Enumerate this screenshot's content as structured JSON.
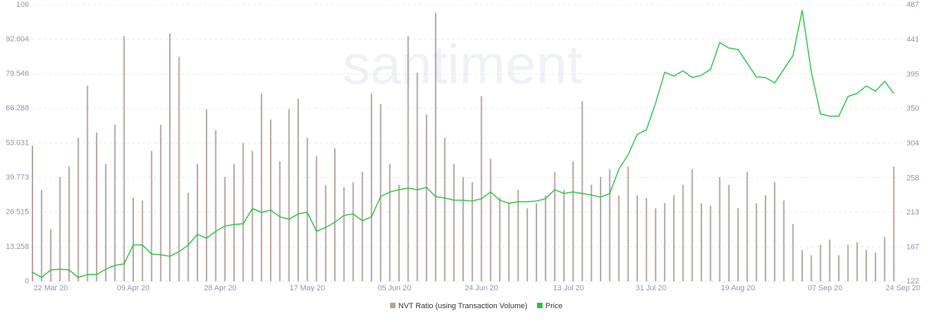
{
  "chart_data": {
    "type": "bar",
    "watermark": "santiment",
    "x": [
      "2020-03-18",
      "2020-03-20",
      "2020-03-22",
      "2020-03-24",
      "2020-03-26",
      "2020-03-28",
      "2020-03-30",
      "2020-04-01",
      "2020-04-03",
      "2020-04-05",
      "2020-04-07",
      "2020-04-09",
      "2020-04-11",
      "2020-04-13",
      "2020-04-15",
      "2020-04-17",
      "2020-04-19",
      "2020-04-21",
      "2020-04-23",
      "2020-04-25",
      "2020-04-27",
      "2020-04-29",
      "2020-05-01",
      "2020-05-03",
      "2020-05-05",
      "2020-05-07",
      "2020-05-09",
      "2020-05-11",
      "2020-05-13",
      "2020-05-15",
      "2020-05-17",
      "2020-05-19",
      "2020-05-21",
      "2020-05-23",
      "2020-05-25",
      "2020-05-27",
      "2020-05-29",
      "2020-05-31",
      "2020-06-02",
      "2020-06-04",
      "2020-06-06",
      "2020-06-08",
      "2020-06-10",
      "2020-06-12",
      "2020-06-14",
      "2020-06-16",
      "2020-06-18",
      "2020-06-20",
      "2020-06-22",
      "2020-06-24",
      "2020-06-26",
      "2020-06-28",
      "2020-06-30",
      "2020-07-02",
      "2020-07-04",
      "2020-07-06",
      "2020-07-08",
      "2020-07-10",
      "2020-07-12",
      "2020-07-14",
      "2020-07-16",
      "2020-07-18",
      "2020-07-20",
      "2020-07-22",
      "2020-07-24",
      "2020-07-26",
      "2020-07-28",
      "2020-07-30",
      "2020-08-01",
      "2020-08-03",
      "2020-08-05",
      "2020-08-07",
      "2020-08-09",
      "2020-08-11",
      "2020-08-13",
      "2020-08-15",
      "2020-08-17",
      "2020-08-19",
      "2020-08-21",
      "2020-08-23",
      "2020-08-25",
      "2020-08-27",
      "2020-08-29",
      "2020-08-31",
      "2020-09-02",
      "2020-09-04",
      "2020-09-06",
      "2020-09-08",
      "2020-09-10",
      "2020-09-12",
      "2020-09-14",
      "2020-09-16",
      "2020-09-18",
      "2020-09-20",
      "2020-09-22"
    ],
    "xlim": [
      "2020-03-18",
      "2020-09-24"
    ],
    "xticks": [
      {
        "value": "2020-03-22",
        "label": "22 Mar 20"
      },
      {
        "value": "2020-04-09",
        "label": "09 Apr 20"
      },
      {
        "value": "2020-04-28",
        "label": "28 Apr 20"
      },
      {
        "value": "2020-05-17",
        "label": "17 May 20"
      },
      {
        "value": "2020-06-05",
        "label": "05 Jun 20"
      },
      {
        "value": "2020-06-24",
        "label": "24 Jun 20"
      },
      {
        "value": "2020-07-13",
        "label": "13 Jul 20"
      },
      {
        "value": "2020-07-31",
        "label": "31 Jul 20"
      },
      {
        "value": "2020-08-19",
        "label": "19 Aug 20"
      },
      {
        "value": "2020-09-07",
        "label": "07 Sep 20"
      },
      {
        "value": "2020-09-24",
        "label": "24 Sep 20"
      }
    ],
    "ylim": [
      0,
      106
    ],
    "yticks": [
      0,
      13.258,
      26.515,
      39.773,
      53.031,
      66.288,
      79.546,
      92.804,
      106
    ],
    "y2lim": [
      122,
      487
    ],
    "y2ticks": [
      122,
      167,
      213,
      258,
      304,
      350,
      395,
      441,
      487
    ],
    "grid": true,
    "series": [
      {
        "name": "NVT Ratio (using Transaction Volume)",
        "type": "bar",
        "color": "#b3a39c",
        "values": [
          52,
          35,
          20,
          40,
          44,
          55,
          75,
          57,
          45,
          60,
          94,
          32,
          31,
          50,
          60,
          95,
          86,
          34,
          45,
          66,
          58,
          40,
          45,
          53,
          50,
          72,
          62,
          46,
          66,
          70,
          55,
          48,
          37,
          51,
          36,
          38,
          42,
          72,
          68,
          45,
          37,
          94,
          80,
          64,
          103,
          55,
          45,
          40,
          38,
          71,
          47,
          32,
          30,
          35,
          28,
          30,
          33,
          42,
          35,
          46,
          69,
          37,
          40,
          43,
          33,
          44,
          33,
          32,
          28,
          30,
          33,
          37,
          43,
          30,
          29,
          40,
          37,
          28,
          42,
          30,
          33,
          38,
          31,
          22,
          12,
          10,
          14,
          16,
          10,
          14,
          15,
          12,
          11,
          17,
          44
        ]
      },
      {
        "name": "Price",
        "type": "line",
        "axis": "y2",
        "color": "#26c241",
        "values": [
          134,
          127,
          137,
          138,
          137,
          127,
          131,
          131,
          138,
          143,
          145,
          170,
          170,
          158,
          157,
          155,
          161,
          170,
          184,
          179,
          188,
          195,
          197,
          198,
          218,
          213,
          216,
          207,
          204,
          211,
          213,
          188,
          193,
          200,
          209,
          211,
          202,
          207,
          234,
          240,
          243,
          245,
          243,
          246,
          234,
          232,
          229,
          229,
          228,
          231,
          240,
          229,
          225,
          227,
          227,
          228,
          231,
          243,
          238,
          240,
          238,
          236,
          233,
          238,
          270,
          289,
          316,
          322,
          357,
          398,
          393,
          400,
          391,
          394,
          402,
          437,
          430,
          428,
          410,
          392,
          391,
          384,
          402,
          420,
          480,
          398,
          343,
          340,
          340,
          366,
          370,
          380,
          373,
          386,
          370
        ]
      }
    ]
  }
}
